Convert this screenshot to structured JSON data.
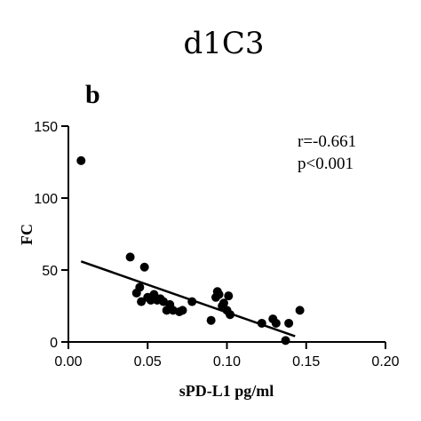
{
  "chart_data": {
    "type": "scatter",
    "title": "d1C3",
    "panel_label": "b",
    "xlabel": "sPD-L1 pg/ml",
    "ylabel": "FC",
    "xlim": [
      0.0,
      0.2
    ],
    "ylim": [
      0,
      150
    ],
    "xticks": [
      "0.00",
      "0.05",
      "0.10",
      "0.15",
      "0.20"
    ],
    "yticks": [
      "0",
      "50",
      "100",
      "150"
    ],
    "annotations": [
      "r=-0.661",
      "p<0.001"
    ],
    "grid": false,
    "points": [
      {
        "x": 0.008,
        "y": 126
      },
      {
        "x": 0.039,
        "y": 59
      },
      {
        "x": 0.043,
        "y": 34
      },
      {
        "x": 0.045,
        "y": 38
      },
      {
        "x": 0.046,
        "y": 28
      },
      {
        "x": 0.048,
        "y": 52
      },
      {
        "x": 0.05,
        "y": 31
      },
      {
        "x": 0.052,
        "y": 29
      },
      {
        "x": 0.054,
        "y": 33
      },
      {
        "x": 0.056,
        "y": 29
      },
      {
        "x": 0.058,
        "y": 30
      },
      {
        "x": 0.06,
        "y": 28
      },
      {
        "x": 0.062,
        "y": 22
      },
      {
        "x": 0.064,
        "y": 26
      },
      {
        "x": 0.066,
        "y": 22
      },
      {
        "x": 0.07,
        "y": 21
      },
      {
        "x": 0.072,
        "y": 22
      },
      {
        "x": 0.078,
        "y": 28
      },
      {
        "x": 0.09,
        "y": 15
      },
      {
        "x": 0.093,
        "y": 31
      },
      {
        "x": 0.094,
        "y": 35
      },
      {
        "x": 0.095,
        "y": 33
      },
      {
        "x": 0.097,
        "y": 25
      },
      {
        "x": 0.098,
        "y": 27
      },
      {
        "x": 0.1,
        "y": 22
      },
      {
        "x": 0.101,
        "y": 32
      },
      {
        "x": 0.102,
        "y": 19
      },
      {
        "x": 0.122,
        "y": 13
      },
      {
        "x": 0.129,
        "y": 16
      },
      {
        "x": 0.131,
        "y": 13
      },
      {
        "x": 0.137,
        "y": 1
      },
      {
        "x": 0.139,
        "y": 13
      },
      {
        "x": 0.146,
        "y": 22
      }
    ],
    "regression_line": {
      "x": [
        0.008,
        0.143
      ],
      "y": [
        56,
        4
      ]
    }
  }
}
